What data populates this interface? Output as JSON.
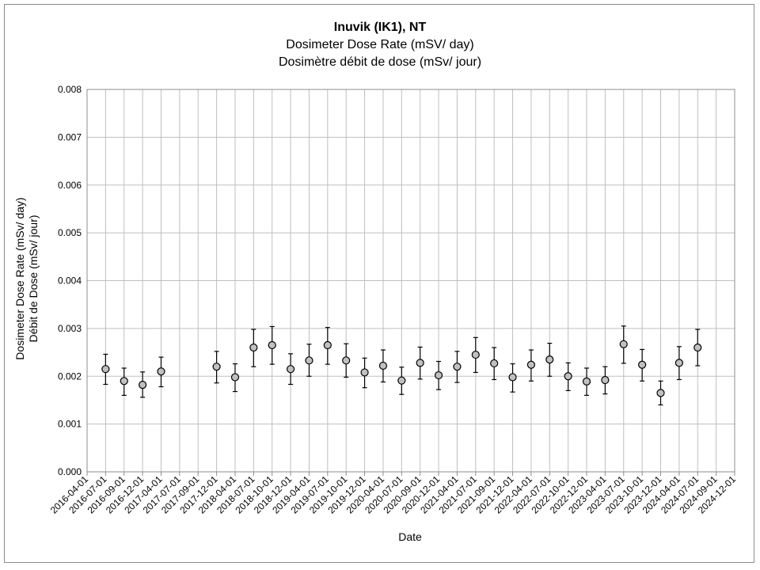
{
  "chart_data": {
    "type": "scatter",
    "title": "Inuvik (IK1), NT",
    "subtitle_en": "Dosimeter Dose Rate (mSV/ day)",
    "subtitle_fr": "Dosimètre débit de dose (mSv/ jour)",
    "xlabel": "Date",
    "ylabel_en": "Dosimeter Dose Rate (mSv/ day)",
    "ylabel_fr": "Débit de Dose (mSv/ jour)",
    "ylim": [
      0,
      0.008
    ],
    "y_ticks": [
      "0.000",
      "0.001",
      "0.002",
      "0.003",
      "0.004",
      "0.005",
      "0.006",
      "0.007",
      "0.008"
    ],
    "grid": true,
    "legend": "none",
    "error_bars": true,
    "x_categories": [
      "2016-04-01",
      "2016-07-01",
      "2016-09-01",
      "2016-12-01",
      "2017-04-01",
      "2017-07-01",
      "2017-09-01",
      "2017-12-01",
      "2018-04-01",
      "2018-07-01",
      "2018-10-01",
      "2018-12-01",
      "2019-04-01",
      "2019-07-01",
      "2019-10-01",
      "2019-12-01",
      "2020-04-01",
      "2020-07-01",
      "2020-09-01",
      "2020-12-01",
      "2021-04-01",
      "2021-07-01",
      "2021-09-01",
      "2021-12-01",
      "2022-04-01",
      "2022-07-01",
      "2022-10-01",
      "2022-12-01",
      "2023-04-01",
      "2023-07-01",
      "2023-10-01",
      "2023-12-01",
      "2024-04-01",
      "2024-07-01",
      "2024-09-01",
      "2024-12-01"
    ],
    "points": [
      {
        "x": "2016-07-01",
        "y": 0.00215,
        "low": 0.00183,
        "high": 0.00246
      },
      {
        "x": "2016-09-01",
        "y": 0.0019,
        "low": 0.0016,
        "high": 0.00217
      },
      {
        "x": "2016-12-01",
        "y": 0.00182,
        "low": 0.00156,
        "high": 0.00209
      },
      {
        "x": "2017-04-01",
        "y": 0.0021,
        "low": 0.00178,
        "high": 0.0024
      },
      {
        "x": "2017-12-01",
        "y": 0.0022,
        "low": 0.00186,
        "high": 0.00252
      },
      {
        "x": "2018-04-01",
        "y": 0.00198,
        "low": 0.00168,
        "high": 0.00226
      },
      {
        "x": "2018-07-01",
        "y": 0.0026,
        "low": 0.0022,
        "high": 0.00298
      },
      {
        "x": "2018-10-01",
        "y": 0.00265,
        "low": 0.00225,
        "high": 0.00304
      },
      {
        "x": "2018-12-01",
        "y": 0.00215,
        "low": 0.00183,
        "high": 0.00247
      },
      {
        "x": "2019-04-01",
        "y": 0.00233,
        "low": 0.002,
        "high": 0.00267
      },
      {
        "x": "2019-07-01",
        "y": 0.00265,
        "low": 0.00225,
        "high": 0.00302
      },
      {
        "x": "2019-10-01",
        "y": 0.00233,
        "low": 0.00198,
        "high": 0.00268
      },
      {
        "x": "2019-12-01",
        "y": 0.00208,
        "low": 0.00176,
        "high": 0.00238
      },
      {
        "x": "2020-04-01",
        "y": 0.00222,
        "low": 0.00188,
        "high": 0.00255
      },
      {
        "x": "2020-07-01",
        "y": 0.00191,
        "low": 0.00162,
        "high": 0.00219
      },
      {
        "x": "2020-09-01",
        "y": 0.00228,
        "low": 0.00194,
        "high": 0.00261
      },
      {
        "x": "2020-12-01",
        "y": 0.00202,
        "low": 0.00172,
        "high": 0.00231
      },
      {
        "x": "2021-04-01",
        "y": 0.0022,
        "low": 0.00187,
        "high": 0.00252
      },
      {
        "x": "2021-07-01",
        "y": 0.00245,
        "low": 0.00208,
        "high": 0.00281
      },
      {
        "x": "2021-09-01",
        "y": 0.00227,
        "low": 0.00193,
        "high": 0.0026
      },
      {
        "x": "2021-12-01",
        "y": 0.00198,
        "low": 0.00167,
        "high": 0.00226
      },
      {
        "x": "2022-04-01",
        "y": 0.00224,
        "low": 0.0019,
        "high": 0.00255
      },
      {
        "x": "2022-07-01",
        "y": 0.00235,
        "low": 0.002,
        "high": 0.00269
      },
      {
        "x": "2022-10-01",
        "y": 0.002,
        "low": 0.0017,
        "high": 0.00228
      },
      {
        "x": "2022-12-01",
        "y": 0.00189,
        "low": 0.0016,
        "high": 0.00217
      },
      {
        "x": "2023-04-01",
        "y": 0.00192,
        "low": 0.00163,
        "high": 0.0022
      },
      {
        "x": "2023-07-01",
        "y": 0.00267,
        "low": 0.00227,
        "high": 0.00305
      },
      {
        "x": "2023-10-01",
        "y": 0.00224,
        "low": 0.0019,
        "high": 0.00256
      },
      {
        "x": "2023-12-01",
        "y": 0.00165,
        "low": 0.0014,
        "high": 0.0019
      },
      {
        "x": "2024-04-01",
        "y": 0.00228,
        "low": 0.00193,
        "high": 0.00262
      },
      {
        "x": "2024-07-01",
        "y": 0.0026,
        "low": 0.00222,
        "high": 0.00298
      }
    ],
    "colors": {
      "marker_fill": "#c0c0c0",
      "marker_stroke": "#000000",
      "grid": "#bfbfbf",
      "axis": "#8c8c8c"
    }
  }
}
